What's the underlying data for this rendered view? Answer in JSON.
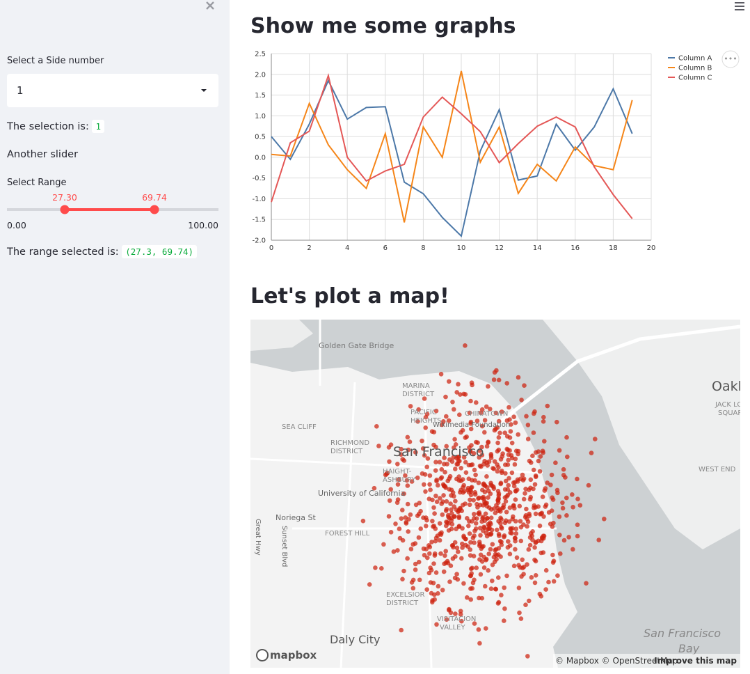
{
  "sidebar": {
    "select": {
      "label": "Select a Side number",
      "value": "1"
    },
    "selection_text": "The selection is:",
    "selection_value": "1",
    "slider_heading": "Another slider",
    "slider": {
      "label": "Select Range",
      "min": {
        "value": 0,
        "label": "0.00"
      },
      "max": {
        "value": 100,
        "label": "100.00"
      },
      "low": {
        "value": 27.3,
        "label": "27.30"
      },
      "high": {
        "value": 69.74,
        "label": "69.74"
      }
    },
    "range_text": "The range selected is:",
    "range_value": "(27.3, 69.74)"
  },
  "main": {
    "heading1": "Show me some graphs",
    "heading2": "Let's plot a map!"
  },
  "chart_data": {
    "type": "line",
    "x": [
      0,
      1,
      2,
      3,
      4,
      5,
      6,
      7,
      8,
      9,
      10,
      11,
      12,
      13,
      14,
      15,
      16,
      17,
      18,
      19
    ],
    "xlim": [
      0,
      20
    ],
    "xticks": [
      0,
      2,
      4,
      6,
      8,
      10,
      12,
      14,
      16,
      18,
      20
    ],
    "ylim": [
      -2,
      2.5
    ],
    "yticks": [
      {
        "value": -2,
        "label": "-2.0"
      },
      -1.5,
      {
        "value": -1,
        "label": "-1.0"
      },
      -0.5,
      {
        "value": 0,
        "label": "0.0"
      },
      0.5,
      {
        "value": 1,
        "label": "1.0"
      },
      1.5,
      {
        "value": 2,
        "label": "2.0"
      },
      2.5
    ],
    "grid": true,
    "legend": "right",
    "series": [
      {
        "name": "Column A",
        "color": "#4c78a8",
        "values": [
          0.5,
          -0.05,
          0.8,
          1.85,
          0.92,
          1.2,
          1.22,
          -0.6,
          -0.88,
          -1.45,
          -1.9,
          0.15,
          1.15,
          -0.55,
          -0.45,
          0.8,
          0.17,
          0.73,
          1.65,
          0.57
        ]
      },
      {
        "name": "Column B",
        "color": "#f58518",
        "values": [
          0.07,
          0.03,
          1.3,
          0.3,
          -0.3,
          -0.75,
          0.57,
          -1.57,
          0.73,
          0.0,
          2.08,
          -0.12,
          0.73,
          -0.87,
          -0.17,
          -0.57,
          0.25,
          -0.2,
          -0.3,
          1.38
        ]
      },
      {
        "name": "Column C",
        "color": "#e45756",
        "values": [
          -1.08,
          0.35,
          0.63,
          1.97,
          0.0,
          -0.57,
          -0.33,
          -0.17,
          0.97,
          1.45,
          1.05,
          0.62,
          -0.13,
          0.33,
          0.75,
          0.97,
          0.73,
          -0.23,
          -0.9,
          -1.48
        ]
      }
    ]
  },
  "map": {
    "labels": [
      "Golden Gate Bridge",
      "MARINA",
      "DISTRICT",
      "PACIFIC",
      "HEIGHTS",
      "CHINATOWN",
      "Wikimedia Foundation",
      "SEA CLIFF",
      "RICHMOND",
      "DISTRICT",
      "San Francisco",
      "HAIGHT-",
      "ASHBURY",
      "University of California",
      "Noriega St",
      "FOREST HILL",
      "Sunset Blvd",
      "Great Hwy",
      "EXCELSIOR",
      "DISTRICT",
      "VISITACION",
      "VALLEY",
      "Daly City",
      "Oakl",
      "JACK LON",
      "SQUAR",
      "WEST END",
      "San Francisco",
      "Bay"
    ],
    "logo": "mapbox",
    "attribution": "© Mapbox © OpenStreetMap",
    "improve": "Improve this map"
  }
}
